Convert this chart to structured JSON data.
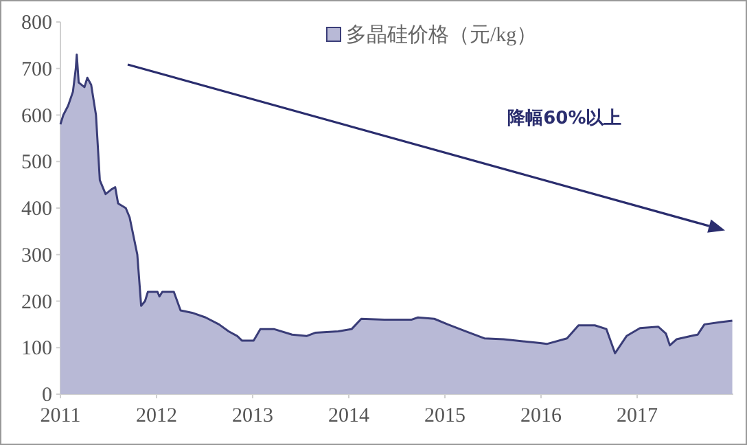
{
  "chart_data": {
    "type": "area",
    "x": [
      2011.0,
      2011.03,
      2011.08,
      2011.13,
      2011.16,
      2011.17,
      2011.19,
      2011.25,
      2011.28,
      2011.32,
      2011.37,
      2011.41,
      2011.47,
      2011.53,
      2011.57,
      2011.6,
      2011.68,
      2011.72,
      2011.8,
      2011.84,
      2011.88,
      2011.91,
      2012.01,
      2012.03,
      2012.06,
      2012.18,
      2012.25,
      2012.37,
      2012.51,
      2012.65,
      2012.75,
      2012.84,
      2012.89,
      2013.01,
      2013.08,
      2013.13,
      2013.22,
      2013.41,
      2013.56,
      2013.65,
      2013.89,
      2014.03,
      2014.13,
      2014.37,
      2014.65,
      2014.72,
      2014.89,
      2015.03,
      2015.22,
      2015.41,
      2015.61,
      2015.99,
      2016.06,
      2016.27,
      2016.39,
      2016.56,
      2016.68,
      2016.77,
      2016.89,
      2017.03,
      2017.22,
      2017.3,
      2017.34,
      2017.41,
      2017.56,
      2017.63,
      2017.7,
      2017.87,
      2017.99
    ],
    "series": [
      {
        "name": "多晶硅价格（元/kg）",
        "color": "#b8b9d6",
        "values": [
          580,
          600,
          620,
          650,
          700,
          730,
          670,
          660,
          680,
          665,
          600,
          460,
          430,
          440,
          445,
          410,
          400,
          380,
          300,
          190,
          200,
          220,
          220,
          210,
          220,
          220,
          180,
          175,
          165,
          150,
          135,
          125,
          115,
          115,
          140,
          140,
          140,
          128,
          125,
          132,
          135,
          140,
          162,
          160,
          160,
          165,
          162,
          150,
          135,
          120,
          118,
          110,
          108,
          120,
          148,
          148,
          140,
          88,
          125,
          142,
          145,
          130,
          105,
          118,
          125,
          128,
          150,
          155,
          158
        ]
      }
    ],
    "xlim": [
      2011,
      2018
    ],
    "xticks": [
      2011,
      2012,
      2013,
      2014,
      2015,
      2016,
      2017
    ],
    "ylim": [
      0,
      800
    ],
    "yticks": [
      0,
      100,
      200,
      300,
      400,
      500,
      600,
      700,
      800
    ],
    "legend": "top",
    "annotations": [
      "降幅60%以上"
    ]
  }
}
